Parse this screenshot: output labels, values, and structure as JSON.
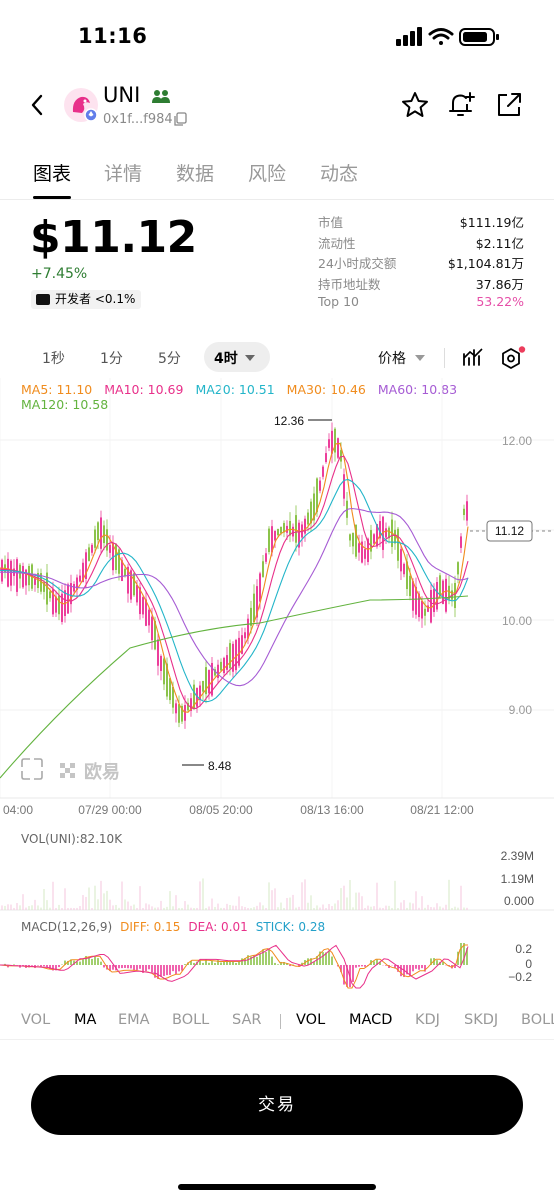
{
  "status": {
    "time": "11:16"
  },
  "token": {
    "symbol": "UNI",
    "address": "0x1f...f984"
  },
  "tabs": [
    {
      "label": "图表",
      "active": true
    },
    {
      "label": "详情",
      "active": false
    },
    {
      "label": "数据",
      "active": false
    },
    {
      "label": "风险",
      "active": false
    },
    {
      "label": "动态",
      "active": false
    }
  ],
  "price": {
    "value": "$11.12",
    "change": "+7.45%",
    "dev_badge": "开发者 <0.1%"
  },
  "stats": [
    {
      "label": "市值",
      "value": "$111.19亿"
    },
    {
      "label": "流动性",
      "value": "$2.11亿"
    },
    {
      "label": "24小时成交额",
      "value": "$1,104.81万"
    },
    {
      "label": "持币地址数",
      "value": "37.86万"
    },
    {
      "label": "Top 10",
      "value": "53.22%"
    }
  ],
  "timeframes": [
    "1秒",
    "1分",
    "5分",
    "4时"
  ],
  "active_timeframe": "4时",
  "price_type_label": "价格",
  "ma_legend": [
    {
      "label": "MA5: 11.10",
      "color": "#f08c1e"
    },
    {
      "label": "MA10: 10.69",
      "color": "#e8308a"
    },
    {
      "label": "MA20: 10.51",
      "color": "#23b5c9"
    },
    {
      "label": "MA30: 10.46",
      "color": "#f08c1e"
    },
    {
      "label": "MA60: 10.83",
      "color": "#a65cd4"
    },
    {
      "label": "MA120: 10.58",
      "color": "#63b33f"
    }
  ],
  "chart": {
    "y_ticks": [
      "12.00",
      "11.12",
      "10.00",
      "9.00"
    ],
    "current_price": "11.12",
    "high_label": "12.36",
    "low_label": "8.48",
    "x_ticks": [
      "04:00",
      "07/29 00:00",
      "08/05 20:00",
      "08/13 16:00",
      "08/21 12:00"
    ],
    "watermark": "欧易",
    "colors": {
      "up": "#8bc34a",
      "down": "#ec3d9a"
    }
  },
  "volume": {
    "label": "VOL(UNI):82.10K",
    "ticks": [
      "2.39M",
      "1.19M",
      "0.000"
    ]
  },
  "macd": {
    "title": "MACD(12,26,9)",
    "diff": "DIFF: 0.15",
    "dea": "DEA: 0.01",
    "stick": "STICK: 0.28",
    "ticks": [
      "0.2",
      "0",
      "−0.2"
    ]
  },
  "indicators": [
    {
      "label": "VOL",
      "on": false
    },
    {
      "label": "MA",
      "on": true
    },
    {
      "label": "EMA",
      "on": false
    },
    {
      "label": "BOLL",
      "on": false
    },
    {
      "label": "SAR",
      "on": false
    },
    {
      "label": "VOL",
      "on": true
    },
    {
      "label": "MACD",
      "on": true
    },
    {
      "label": "KDJ",
      "on": false
    },
    {
      "label": "SKDJ",
      "on": false
    },
    {
      "label": "BOLL",
      "on": false
    }
  ],
  "trade_button": "交易"
}
